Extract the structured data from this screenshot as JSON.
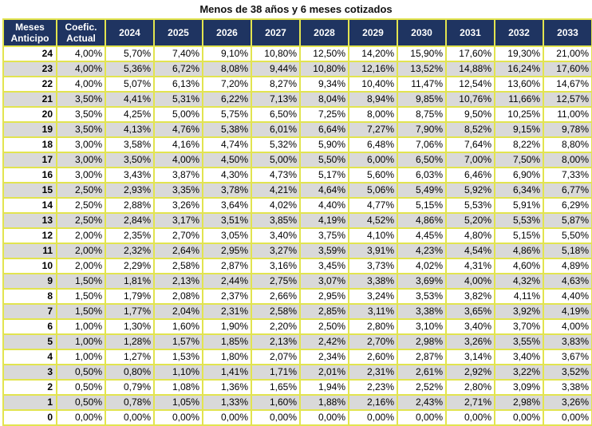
{
  "title": "Menos de 38 años y 6 meses cotizados",
  "headers": {
    "meses_line1": "Meses",
    "meses_line2": "Anticipo",
    "coef_line1": "Coefic.",
    "coef_line2": "Actual",
    "years": [
      "2024",
      "2025",
      "2026",
      "2027",
      "2028",
      "2029",
      "2030",
      "2031",
      "2032",
      "2033"
    ]
  },
  "rows": [
    {
      "meses": "24",
      "coef": "4,00%",
      "values": [
        "5,70%",
        "7,40%",
        "9,10%",
        "10,80%",
        "12,50%",
        "14,20%",
        "15,90%",
        "17,60%",
        "19,30%",
        "21,00%"
      ]
    },
    {
      "meses": "23",
      "coef": "4,00%",
      "values": [
        "5,36%",
        "6,72%",
        "8,08%",
        "9,44%",
        "10,80%",
        "12,16%",
        "13,52%",
        "14,88%",
        "16,24%",
        "17,60%"
      ]
    },
    {
      "meses": "22",
      "coef": "4,00%",
      "values": [
        "5,07%",
        "6,13%",
        "7,20%",
        "8,27%",
        "9,34%",
        "10,40%",
        "11,47%",
        "12,54%",
        "13,60%",
        "14,67%"
      ]
    },
    {
      "meses": "21",
      "coef": "3,50%",
      "values": [
        "4,41%",
        "5,31%",
        "6,22%",
        "7,13%",
        "8,04%",
        "8,94%",
        "9,85%",
        "10,76%",
        "11,66%",
        "12,57%"
      ]
    },
    {
      "meses": "20",
      "coef": "3,50%",
      "values": [
        "4,25%",
        "5,00%",
        "5,75%",
        "6,50%",
        "7,25%",
        "8,00%",
        "8,75%",
        "9,50%",
        "10,25%",
        "11,00%"
      ]
    },
    {
      "meses": "19",
      "coef": "3,50%",
      "values": [
        "4,13%",
        "4,76%",
        "5,38%",
        "6,01%",
        "6,64%",
        "7,27%",
        "7,90%",
        "8,52%",
        "9,15%",
        "9,78%"
      ]
    },
    {
      "meses": "18",
      "coef": "3,00%",
      "values": [
        "3,58%",
        "4,16%",
        "4,74%",
        "5,32%",
        "5,90%",
        "6,48%",
        "7,06%",
        "7,64%",
        "8,22%",
        "8,80%"
      ]
    },
    {
      "meses": "17",
      "coef": "3,00%",
      "values": [
        "3,50%",
        "4,00%",
        "4,50%",
        "5,00%",
        "5,50%",
        "6,00%",
        "6,50%",
        "7,00%",
        "7,50%",
        "8,00%"
      ]
    },
    {
      "meses": "16",
      "coef": "3,00%",
      "values": [
        "3,43%",
        "3,87%",
        "4,30%",
        "4,73%",
        "5,17%",
        "5,60%",
        "6,03%",
        "6,46%",
        "6,90%",
        "7,33%"
      ]
    },
    {
      "meses": "15",
      "coef": "2,50%",
      "values": [
        "2,93%",
        "3,35%",
        "3,78%",
        "4,21%",
        "4,64%",
        "5,06%",
        "5,49%",
        "5,92%",
        "6,34%",
        "6,77%"
      ]
    },
    {
      "meses": "14",
      "coef": "2,50%",
      "values": [
        "2,88%",
        "3,26%",
        "3,64%",
        "4,02%",
        "4,40%",
        "4,77%",
        "5,15%",
        "5,53%",
        "5,91%",
        "6,29%"
      ]
    },
    {
      "meses": "13",
      "coef": "2,50%",
      "values": [
        "2,84%",
        "3,17%",
        "3,51%",
        "3,85%",
        "4,19%",
        "4,52%",
        "4,86%",
        "5,20%",
        "5,53%",
        "5,87%"
      ]
    },
    {
      "meses": "12",
      "coef": "2,00%",
      "values": [
        "2,35%",
        "2,70%",
        "3,05%",
        "3,40%",
        "3,75%",
        "4,10%",
        "4,45%",
        "4,80%",
        "5,15%",
        "5,50%"
      ]
    },
    {
      "meses": "11",
      "coef": "2,00%",
      "values": [
        "2,32%",
        "2,64%",
        "2,95%",
        "3,27%",
        "3,59%",
        "3,91%",
        "4,23%",
        "4,54%",
        "4,86%",
        "5,18%"
      ]
    },
    {
      "meses": "10",
      "coef": "2,00%",
      "values": [
        "2,29%",
        "2,58%",
        "2,87%",
        "3,16%",
        "3,45%",
        "3,73%",
        "4,02%",
        "4,31%",
        "4,60%",
        "4,89%"
      ]
    },
    {
      "meses": "9",
      "coef": "1,50%",
      "values": [
        "1,81%",
        "2,13%",
        "2,44%",
        "2,75%",
        "3,07%",
        "3,38%",
        "3,69%",
        "4,00%",
        "4,32%",
        "4,63%"
      ]
    },
    {
      "meses": "8",
      "coef": "1,50%",
      "values": [
        "1,79%",
        "2,08%",
        "2,37%",
        "2,66%",
        "2,95%",
        "3,24%",
        "3,53%",
        "3,82%",
        "4,11%",
        "4,40%"
      ]
    },
    {
      "meses": "7",
      "coef": "1,50%",
      "values": [
        "1,77%",
        "2,04%",
        "2,31%",
        "2,58%",
        "2,85%",
        "3,11%",
        "3,38%",
        "3,65%",
        "3,92%",
        "4,19%"
      ]
    },
    {
      "meses": "6",
      "coef": "1,00%",
      "values": [
        "1,30%",
        "1,60%",
        "1,90%",
        "2,20%",
        "2,50%",
        "2,80%",
        "3,10%",
        "3,40%",
        "3,70%",
        "4,00%"
      ]
    },
    {
      "meses": "5",
      "coef": "1,00%",
      "values": [
        "1,28%",
        "1,57%",
        "1,85%",
        "2,13%",
        "2,42%",
        "2,70%",
        "2,98%",
        "3,26%",
        "3,55%",
        "3,83%"
      ]
    },
    {
      "meses": "4",
      "coef": "1,00%",
      "values": [
        "1,27%",
        "1,53%",
        "1,80%",
        "2,07%",
        "2,34%",
        "2,60%",
        "2,87%",
        "3,14%",
        "3,40%",
        "3,67%"
      ]
    },
    {
      "meses": "3",
      "coef": "0,50%",
      "values": [
        "0,80%",
        "1,10%",
        "1,41%",
        "1,71%",
        "2,01%",
        "2,31%",
        "2,61%",
        "2,92%",
        "3,22%",
        "3,52%"
      ]
    },
    {
      "meses": "2",
      "coef": "0,50%",
      "values": [
        "0,79%",
        "1,08%",
        "1,36%",
        "1,65%",
        "1,94%",
        "2,23%",
        "2,52%",
        "2,80%",
        "3,09%",
        "3,38%"
      ]
    },
    {
      "meses": "1",
      "coef": "0,50%",
      "values": [
        "0,78%",
        "1,05%",
        "1,33%",
        "1,60%",
        "1,88%",
        "2,16%",
        "2,43%",
        "2,71%",
        "2,98%",
        "3,26%"
      ]
    },
    {
      "meses": "0",
      "coef": "0,00%",
      "values": [
        "0,00%",
        "0,00%",
        "0,00%",
        "0,00%",
        "0,00%",
        "0,00%",
        "0,00%",
        "0,00%",
        "0,00%",
        "0,00%"
      ]
    }
  ]
}
